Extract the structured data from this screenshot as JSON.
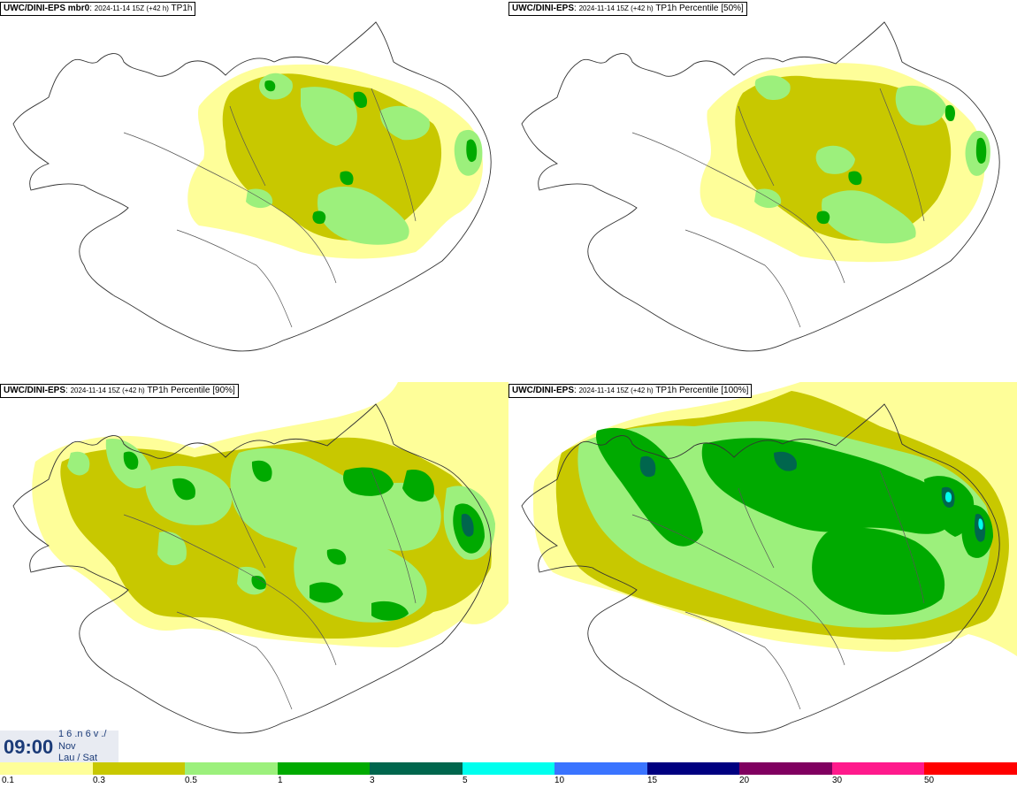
{
  "panels": [
    {
      "model": "UWC/DINI-EPS mbr0",
      "meta": "2024-11-14 15Z (+42 h)",
      "field": "TP1h"
    },
    {
      "model": "UWC/DINI-EPS",
      "meta": "2024-11-14 15Z (+42 h)",
      "field": "TP1h Percentile [50%]"
    },
    {
      "model": "UWC/DINI-EPS",
      "meta": "2024-11-14 15Z (+42 h)",
      "field": "TP1h Percentile [90%]"
    },
    {
      "model": "UWC/DINI-EPS",
      "meta": "2024-11-14 15Z (+42 h)",
      "field": "TP1h Percentile [100%]"
    }
  ],
  "timebox": {
    "time": "09:00",
    "line1": "1 6 .n 6 v ./",
    "line2": "Nov",
    "line3": "Lau / Sat"
  },
  "legend": {
    "colors": [
      "#fefe99",
      "#c8c800",
      "#9cf07c",
      "#00aa00",
      "#00664d",
      "#00ffee",
      "#3a74ff",
      "#000080",
      "#800060",
      "#ff1a8c",
      "#ff0000"
    ],
    "ticks": [
      "0.1",
      "0.3",
      "0.5",
      "1",
      "3",
      "5",
      "10",
      "15",
      "20",
      "30",
      "50"
    ]
  }
}
